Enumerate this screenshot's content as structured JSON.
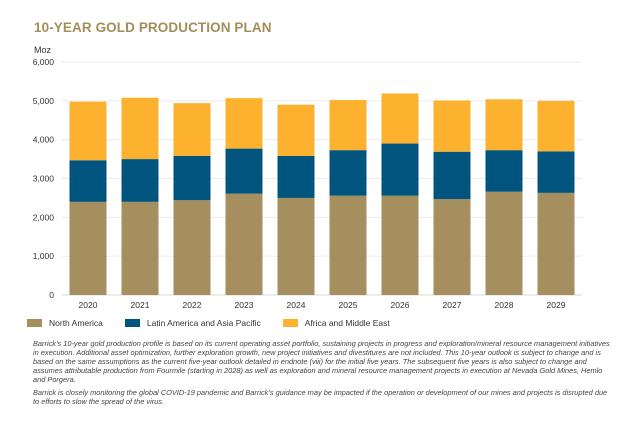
{
  "title": "10-YEAR GOLD PRODUCTION PLAN",
  "chart_data": {
    "type": "bar",
    "stacked": true,
    "title": "10-YEAR GOLD PRODUCTION PLAN",
    "xlabel": "",
    "ylabel": "Moz",
    "ylim": [
      0,
      6000
    ],
    "yticks": [
      0,
      1000,
      2000,
      3000,
      4000,
      5000,
      6000
    ],
    "ytick_labels": [
      "0",
      "1,000",
      "2,000",
      "3,000",
      "4,000",
      "5,000",
      "6,000"
    ],
    "grid": true,
    "legend_position": "bottom-left",
    "categories": [
      "2020",
      "2021",
      "2022",
      "2023",
      "2024",
      "2025",
      "2026",
      "2027",
      "2028",
      "2029"
    ],
    "series": [
      {
        "name": "North America",
        "color": "#a58f5e",
        "values": [
          2400,
          2400,
          2440,
          2610,
          2500,
          2560,
          2560,
          2470,
          2660,
          2630
        ]
      },
      {
        "name": "Latin America and Asia Pacific",
        "color": "#00547e",
        "values": [
          1070,
          1100,
          1140,
          1160,
          1080,
          1170,
          1340,
          1220,
          1070,
          1070
        ]
      },
      {
        "name": "Africa and Middle East",
        "color": "#fdb22f",
        "values": [
          1510,
          1580,
          1360,
          1300,
          1320,
          1290,
          1290,
          1320,
          1310,
          1300
        ]
      }
    ]
  },
  "notes": [
    "Barrick’s 10-year gold production profile is based on its current operating asset portfolio, sustaining projects in progress and exploration/mineral resource management initiatives in execution.  Additional asset optimization, further exploration growth, new project initiatives and divestitures are not included.  This 10-year outlook is subject to change and is based on the same assumptions as the current five-year outlook detailed in endnote (viii) for the initial five years. The subsequent five years is also subject to change and assumes attributable production from Fourmile (starting in 2028) as well as exploration and mineral resource management projects in execution at Nevada Gold Mines, Hemlo and Porgera.",
    "Barrick is closely monitoring the global COVID-19 pandemic and Barrick’s guidance may be impacted if the operation or development of our mines and projects is disrupted due to efforts to slow the spread of the virus."
  ]
}
